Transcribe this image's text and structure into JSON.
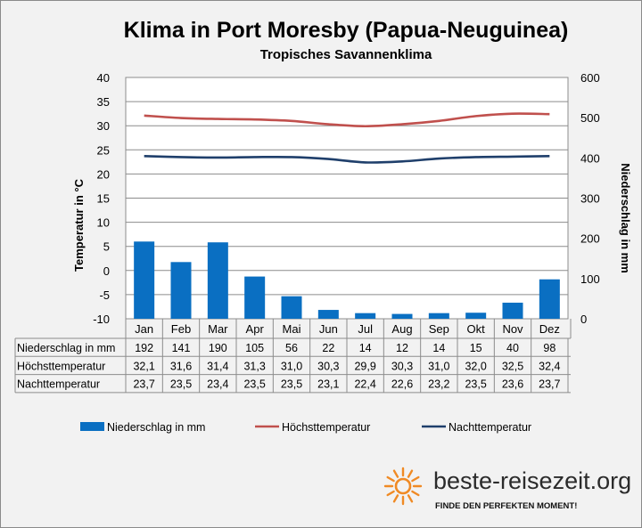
{
  "colors": {
    "bar": "#0a6fc2",
    "max_line": "#c0504d",
    "min_line": "#1f3f6b",
    "sun": "#f08a24",
    "background": "#f2f2f2",
    "plot_background": "#ffffff"
  },
  "chart_data": {
    "type": "bar",
    "title": "Klima in Port Moresby (Papua-Neuguinea)",
    "subtitle": "Tropisches Savannenklima",
    "categories": [
      "Jan",
      "Feb",
      "Mar",
      "Apr",
      "Mai",
      "Jun",
      "Jul",
      "Aug",
      "Sep",
      "Okt",
      "Nov",
      "Dez"
    ],
    "y_left": {
      "label": "Temperatur in °C",
      "min": -10,
      "max": 40,
      "step": 5
    },
    "y_right": {
      "label": "Niederschlag in mm",
      "min": 0,
      "max": 600,
      "step": 100
    },
    "grid": true,
    "legend_position": "bottom",
    "series": [
      {
        "name": "Niederschlag in mm",
        "kind": "bar",
        "axis": "right",
        "values": [
          192,
          141,
          190,
          105,
          56,
          22,
          14,
          12,
          14,
          15,
          40,
          98
        ],
        "display": [
          "192",
          "141",
          "190",
          "105",
          "56",
          "22",
          "14",
          "12",
          "14",
          "15",
          "40",
          "98"
        ]
      },
      {
        "name": "Höchsttemperatur",
        "kind": "line",
        "axis": "left",
        "values": [
          32.1,
          31.6,
          31.4,
          31.3,
          31.0,
          30.3,
          29.9,
          30.3,
          31.0,
          32.0,
          32.5,
          32.4
        ],
        "display": [
          "32,1",
          "31,6",
          "31,4",
          "31,3",
          "31,0",
          "30,3",
          "29,9",
          "30,3",
          "31,0",
          "32,0",
          "32,5",
          "32,4"
        ]
      },
      {
        "name": "Nachttemperatur",
        "kind": "line",
        "axis": "left",
        "values": [
          23.7,
          23.5,
          23.4,
          23.5,
          23.5,
          23.1,
          22.4,
          22.6,
          23.2,
          23.5,
          23.6,
          23.7
        ],
        "display": [
          "23,7",
          "23,5",
          "23,4",
          "23,5",
          "23,5",
          "23,1",
          "22,4",
          "22,6",
          "23,2",
          "23,5",
          "23,6",
          "23,7"
        ]
      }
    ]
  },
  "logo": {
    "brand": "beste-reisezeit.org",
    "slogan": "FINDE DEN PERFEKTEN MOMENT!",
    "icon": "sun-icon"
  }
}
